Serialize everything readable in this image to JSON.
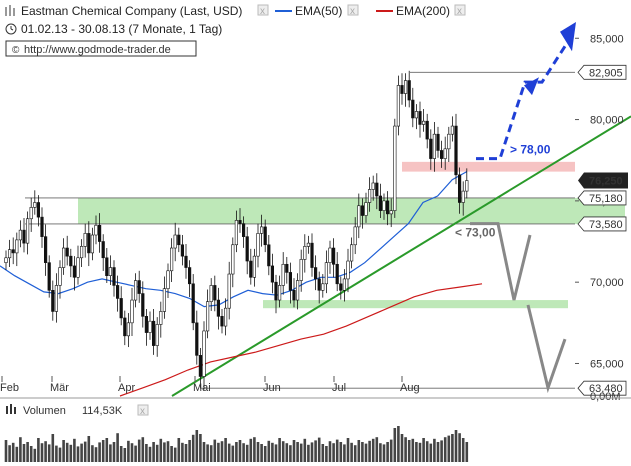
{
  "header": {
    "title": "Eastman Chemical Company (Last, USD)",
    "ema50_label": "EMA(50)",
    "ema200_label": "EMA(200)",
    "ema50_color": "#1f5fd6",
    "ema200_color": "#cc1a1a",
    "period": "01.02.13 - 30.08.13 (7 Monate, 1 Tag)",
    "url": "http://www.godmode-trader.de"
  },
  "chart_data": {
    "type": "candlestick",
    "ylim": [
      63.0,
      86.0
    ],
    "y_ticks": [
      65.0,
      70.0,
      75.0,
      80.0,
      85.0
    ],
    "y_tick_labels": [
      "65,000",
      "70,000",
      "75,000",
      "80,000",
      "85,000"
    ],
    "months": [
      "Feb",
      "Mär",
      "Apr",
      "Mai",
      "Jun",
      "Jul",
      "Aug"
    ],
    "price_levels": [
      {
        "label": "82,905",
        "value": 82.905
      },
      {
        "label": "75,180",
        "value": 75.18
      },
      {
        "label": "73,580",
        "value": 73.58
      },
      {
        "label": "63,480",
        "value": 63.48
      }
    ],
    "last_price": {
      "label": "76,250",
      "value": 76.25
    },
    "support_zones": [
      {
        "from": 73.58,
        "to": 75.18,
        "color": "#a8e0a0"
      },
      {
        "from": 68.4,
        "to": 68.9,
        "color": "#a8e0a0"
      }
    ],
    "resistance_zone": {
      "from": 76.8,
      "to": 77.4,
      "color": "#f4b8b8"
    },
    "annotations": {
      "bull": "> 78,00",
      "bear": "< 73,00"
    },
    "closes": [
      71.5,
      72.0,
      71.8,
      72.6,
      73.2,
      72.4,
      73.9,
      74.6,
      74.9,
      74.0,
      72.8,
      71.2,
      69.5,
      68.2,
      69.8,
      70.9,
      72.1,
      71.6,
      71.0,
      70.3,
      71.5,
      72.2,
      73.0,
      71.8,
      72.9,
      73.5,
      72.5,
      71.5,
      70.4,
      70.9,
      69.8,
      69.0,
      67.8,
      66.7,
      67.5,
      68.9,
      70.1,
      69.3,
      67.9,
      66.9,
      67.6,
      66.1,
      67.4,
      68.2,
      69.6,
      70.7,
      72.1,
      72.9,
      72.3,
      71.6,
      70.9,
      69.9,
      67.5,
      65.5,
      64.2,
      67.0,
      68.8,
      69.8,
      68.9,
      67.9,
      67.3,
      68.4,
      70.5,
      72.3,
      73.8,
      73.6,
      72.8,
      71.3,
      70.3,
      71.6,
      73.0,
      73.4,
      72.3,
      71.0,
      70.0,
      68.9,
      69.8,
      71.1,
      70.6,
      69.5,
      68.9,
      70.1,
      71.4,
      72.2,
      72.4,
      70.9,
      70.2,
      69.5,
      69.9,
      71.2,
      72.1,
      71.1,
      69.9,
      69.5,
      70.2,
      71.3,
      72.3,
      73.4,
      74.7,
      74.1,
      74.9,
      75.7,
      76.1,
      75.3,
      74.4,
      75.0,
      74.2,
      74.4,
      79.6,
      82.1,
      81.6,
      82.4,
      81.2,
      80.1,
      80.5,
      79.7,
      79.9,
      78.8,
      77.6,
      79.1,
      78.1,
      77.6,
      78.2,
      79.1,
      79.6,
      76.6,
      74.9,
      75.6,
      76.25
    ],
    "ema50": [
      71.0,
      70.4,
      69.9,
      69.4,
      69.3,
      69.6,
      70.0,
      70.2,
      70.0,
      69.8,
      69.6,
      69.5,
      69.3,
      69.0,
      68.5,
      68.6,
      69.1,
      69.5,
      69.3,
      69.2,
      69.5,
      70.0,
      70.3,
      70.3,
      70.6,
      71.2,
      72.0,
      72.8,
      73.6,
      74.9,
      75.3,
      76.3,
      76.8
    ],
    "ema200": [
      63.0,
      63.5,
      64.0,
      64.6,
      65.1,
      65.4,
      65.7,
      66.1,
      66.5,
      66.8,
      67.3,
      67.9,
      68.5,
      69.1,
      69.5,
      69.7,
      69.9
    ]
  },
  "volume": {
    "label": "Volumen",
    "value": "114,53K",
    "bars": [
      0.55,
      0.42,
      0.48,
      0.38,
      0.62,
      0.45,
      0.5,
      0.4,
      0.33,
      0.6,
      0.47,
      0.52,
      0.44,
      0.7,
      0.41,
      0.36,
      0.55,
      0.48,
      0.43,
      0.58,
      0.39,
      0.46,
      0.51,
      0.65,
      0.42,
      0.37,
      0.49,
      0.55,
      0.6,
      0.44,
      0.5,
      0.72,
      0.4,
      0.35,
      0.53,
      0.47,
      0.41,
      0.56,
      0.62,
      0.45,
      0.38,
      0.5,
      0.43,
      0.58,
      0.49,
      0.52,
      0.4,
      0.36,
      0.6,
      0.48,
      0.45,
      0.55,
      0.68,
      0.8,
      0.7,
      0.5,
      0.44,
      0.42,
      0.56,
      0.48,
      0.52,
      0.6,
      0.46,
      0.41,
      0.5,
      0.55,
      0.47,
      0.43,
      0.58,
      0.62,
      0.5,
      0.45,
      0.4,
      0.53,
      0.48,
      0.44,
      0.6,
      0.52,
      0.47,
      0.42,
      0.55,
      0.5,
      0.46,
      0.58,
      0.43,
      0.49,
      0.54,
      0.61,
      0.45,
      0.4,
      0.52,
      0.47,
      0.56,
      0.5,
      0.44,
      0.6,
      0.48,
      0.42,
      0.55,
      0.5,
      0.46,
      0.53,
      0.58,
      0.62,
      0.47,
      0.44,
      0.5,
      0.56,
      0.85,
      0.9,
      0.7,
      0.62,
      0.55,
      0.58,
      0.5,
      0.48,
      0.6,
      0.52,
      0.46,
      0.58,
      0.5,
      0.54,
      0.62,
      0.66,
      0.7,
      0.8,
      0.72,
      0.6,
      0.5
    ],
    "right_labels": [
      "0,00M"
    ]
  }
}
